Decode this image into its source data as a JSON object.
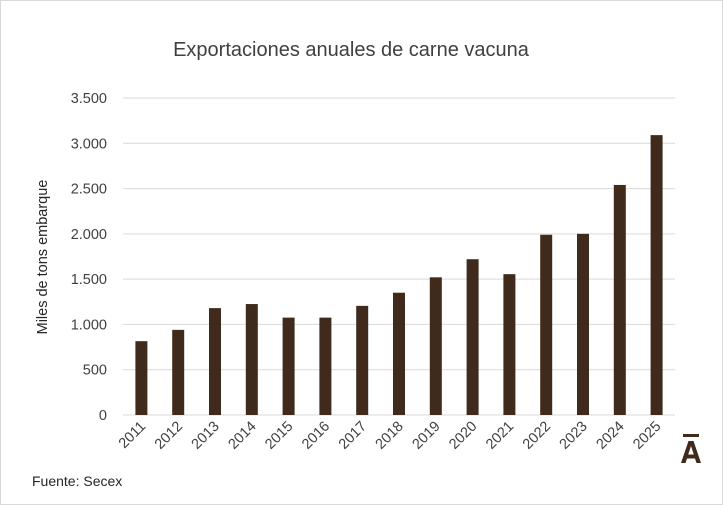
{
  "chart_data": {
    "type": "bar",
    "title": "Exportaciones anuales de carne vacuna",
    "ylabel": "Miles de tons embarque",
    "xlabel": "",
    "categories": [
      "2011",
      "2012",
      "2013",
      "2014",
      "2015",
      "2016",
      "2017",
      "2018",
      "2019",
      "2020",
      "2021",
      "2022",
      "2023",
      "2024",
      "2025"
    ],
    "values": [
      815,
      940,
      1180,
      1225,
      1075,
      1075,
      1205,
      1350,
      1520,
      1720,
      1555,
      1990,
      2000,
      2540,
      3090
    ],
    "ylim": [
      0,
      3500
    ],
    "yticks": [
      0,
      500,
      1000,
      1500,
      2000,
      2500,
      3000,
      3500
    ],
    "ytick_labels": [
      "0",
      "500",
      "1.000",
      "1.500",
      "2.000",
      "2.500",
      "3.000",
      "3.500"
    ],
    "grid": true,
    "legend": "none",
    "bar_color": "#3f2a1c"
  },
  "footer": {
    "source": "Fuente: Secex"
  },
  "logo": {
    "text": "Ā",
    "color": "#3f2a1c"
  }
}
